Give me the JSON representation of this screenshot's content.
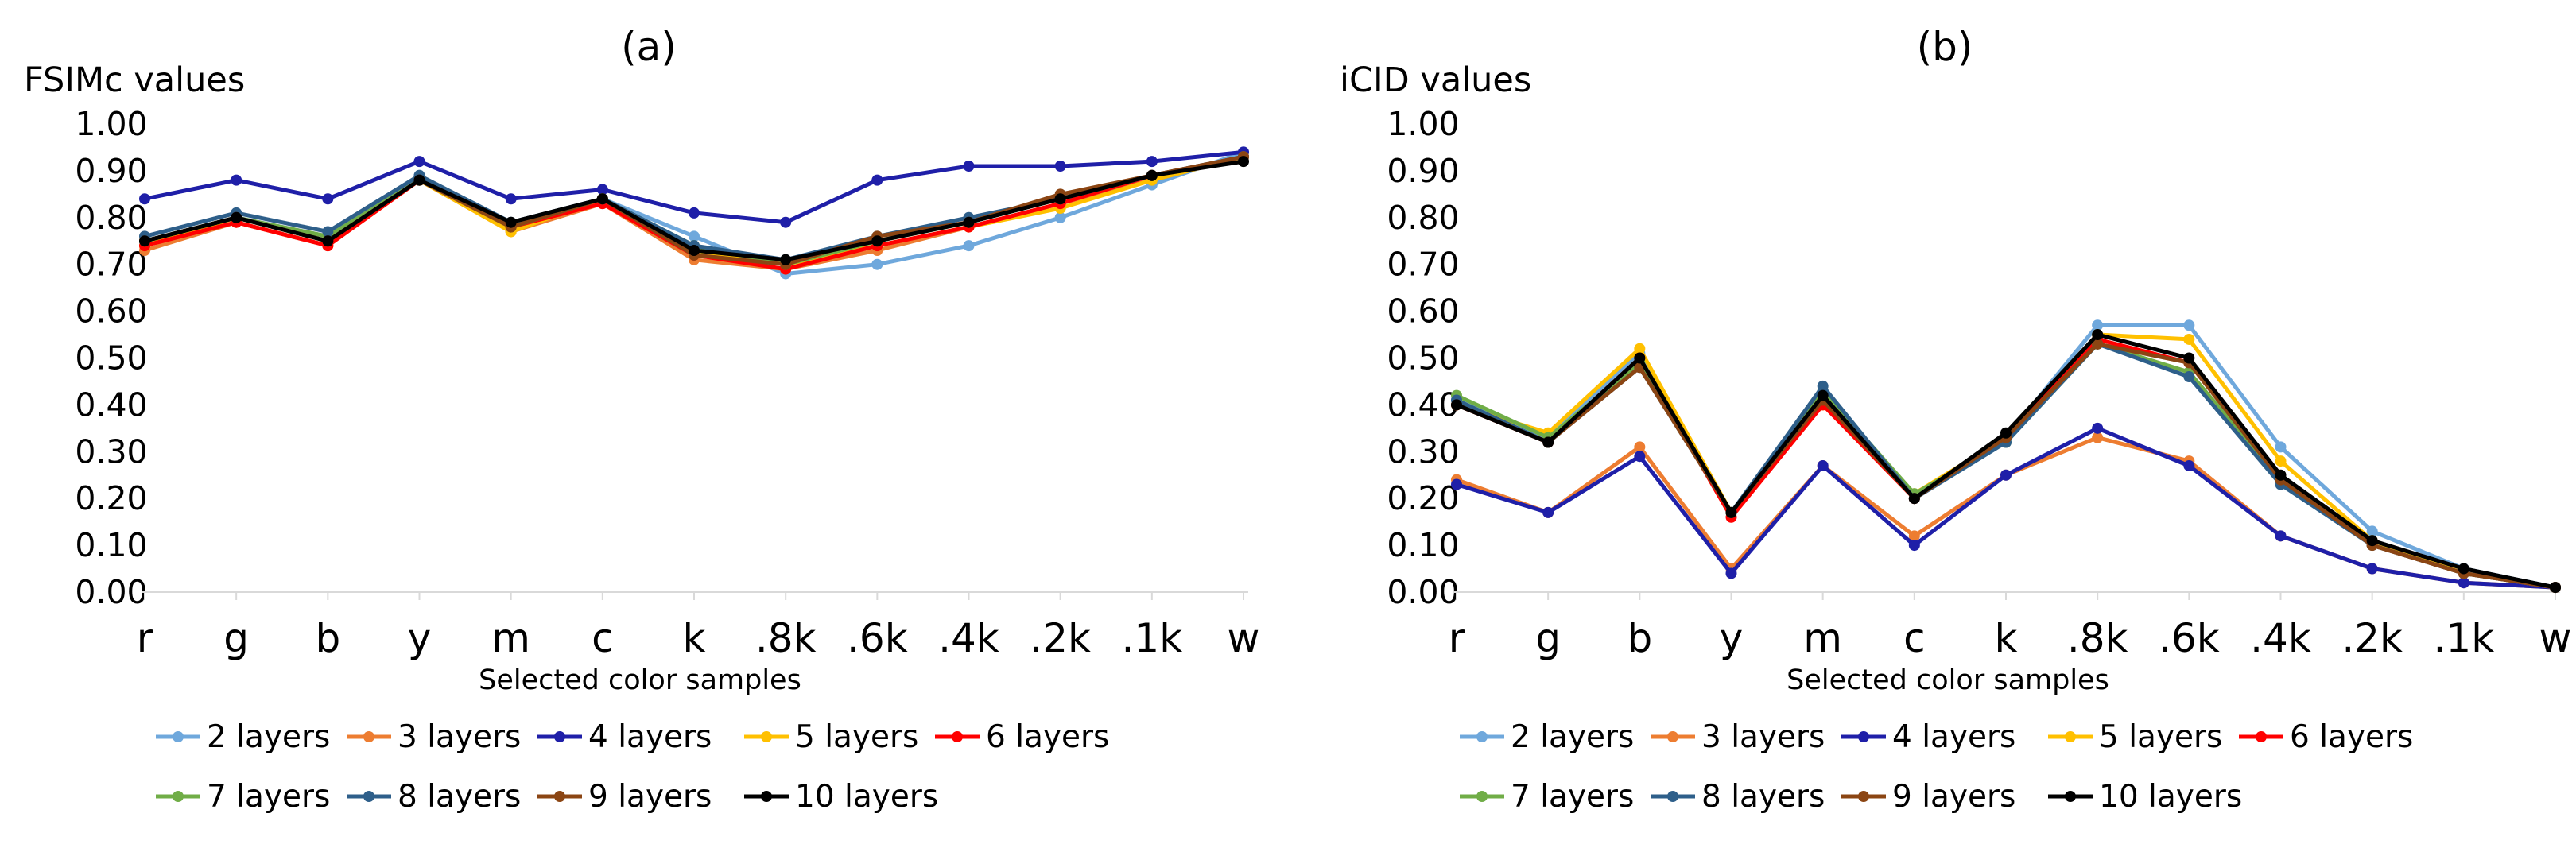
{
  "chart_data": [
    {
      "type": "line",
      "panel_label": "(a)",
      "title": "FSIMc values",
      "xlabel": "Selected color samples",
      "ylabel": "FSIMc values",
      "ylim": [
        0,
        1
      ],
      "yticks": [
        "0.00",
        "0.10",
        "0.20",
        "0.30",
        "0.40",
        "0.50",
        "0.60",
        "0.70",
        "0.80",
        "0.90",
        "1.00"
      ],
      "legend_position": "bottom",
      "categories": [
        "r",
        "g",
        "b",
        "y",
        "m",
        "c",
        "k",
        ".8k",
        ".6k",
        ".4k",
        ".2k",
        ".1k",
        "w"
      ],
      "series": [
        {
          "name": "2 layers",
          "color": "#6fa8dc",
          "values": [
            0.75,
            0.8,
            0.76,
            0.89,
            0.78,
            0.84,
            0.76,
            0.68,
            0.7,
            0.74,
            0.8,
            0.87,
            0.94
          ]
        },
        {
          "name": "3 layers",
          "color": "#ed7d31",
          "values": [
            0.73,
            0.79,
            0.74,
            0.88,
            0.77,
            0.83,
            0.71,
            0.69,
            0.73,
            0.78,
            0.83,
            0.88,
            0.93
          ]
        },
        {
          "name": "4 layers",
          "color": "#1f1fa8",
          "values": [
            0.84,
            0.88,
            0.84,
            0.92,
            0.84,
            0.86,
            0.81,
            0.79,
            0.88,
            0.91,
            0.91,
            0.92,
            0.94
          ]
        },
        {
          "name": "5 layers",
          "color": "#ffc000",
          "values": [
            0.74,
            0.8,
            0.75,
            0.88,
            0.77,
            0.84,
            0.73,
            0.7,
            0.74,
            0.78,
            0.82,
            0.88,
            0.93
          ]
        },
        {
          "name": "6 layers",
          "color": "#ff0000",
          "values": [
            0.74,
            0.79,
            0.74,
            0.88,
            0.78,
            0.83,
            0.72,
            0.69,
            0.74,
            0.78,
            0.83,
            0.89,
            0.93
          ]
        },
        {
          "name": "7 layers",
          "color": "#70ad47",
          "values": [
            0.75,
            0.8,
            0.76,
            0.88,
            0.78,
            0.84,
            0.74,
            0.7,
            0.75,
            0.79,
            0.84,
            0.89,
            0.93
          ]
        },
        {
          "name": "8 layers",
          "color": "#2e5f8a",
          "values": [
            0.76,
            0.81,
            0.77,
            0.89,
            0.79,
            0.84,
            0.74,
            0.71,
            0.76,
            0.8,
            0.84,
            0.89,
            0.93
          ]
        },
        {
          "name": "9 layers",
          "color": "#8b4513",
          "values": [
            0.75,
            0.8,
            0.75,
            0.88,
            0.78,
            0.84,
            0.72,
            0.7,
            0.76,
            0.79,
            0.85,
            0.89,
            0.93
          ]
        },
        {
          "name": "10 layers",
          "color": "#000000",
          "values": [
            0.75,
            0.8,
            0.75,
            0.88,
            0.79,
            0.84,
            0.73,
            0.71,
            0.75,
            0.79,
            0.84,
            0.89,
            0.92
          ]
        }
      ]
    },
    {
      "type": "line",
      "panel_label": "(b)",
      "title": "iCID values",
      "xlabel": "Selected color samples",
      "ylabel": "iCID values",
      "ylim": [
        0,
        1
      ],
      "yticks": [
        "0.00",
        "0.10",
        "0.20",
        "0.30",
        "0.40",
        "0.50",
        "0.60",
        "0.70",
        "0.80",
        "0.90",
        "1.00"
      ],
      "legend_position": "bottom",
      "categories": [
        "r",
        "g",
        "b",
        "y",
        "m",
        "c",
        "k",
        ".8k",
        ".6k",
        ".4k",
        ".2k",
        ".1k",
        "w"
      ],
      "series": [
        {
          "name": "2 layers",
          "color": "#6fa8dc",
          "values": [
            0.41,
            0.33,
            0.51,
            0.17,
            0.42,
            0.2,
            0.33,
            0.57,
            0.57,
            0.31,
            0.13,
            0.05,
            0.01
          ]
        },
        {
          "name": "3 layers",
          "color": "#ed7d31",
          "values": [
            0.24,
            0.17,
            0.31,
            0.05,
            0.27,
            0.12,
            0.25,
            0.33,
            0.28,
            0.12,
            0.05,
            0.02,
            0.01
          ]
        },
        {
          "name": "4 layers",
          "color": "#1f1fa8",
          "values": [
            0.23,
            0.17,
            0.29,
            0.04,
            0.27,
            0.1,
            0.25,
            0.35,
            0.27,
            0.12,
            0.05,
            0.02,
            0.01
          ]
        },
        {
          "name": "5 layers",
          "color": "#ffc000",
          "values": [
            0.4,
            0.34,
            0.52,
            0.17,
            0.4,
            0.21,
            0.33,
            0.55,
            0.54,
            0.28,
            0.11,
            0.04,
            0.01
          ]
        },
        {
          "name": "6 layers",
          "color": "#ff0000",
          "values": [
            0.4,
            0.32,
            0.5,
            0.16,
            0.4,
            0.2,
            0.33,
            0.54,
            0.49,
            0.24,
            0.1,
            0.04,
            0.01
          ]
        },
        {
          "name": "7 layers",
          "color": "#70ad47",
          "values": [
            0.42,
            0.33,
            0.49,
            0.17,
            0.43,
            0.21,
            0.32,
            0.53,
            0.47,
            0.24,
            0.1,
            0.04,
            0.01
          ]
        },
        {
          "name": "8 layers",
          "color": "#2e5f8a",
          "values": [
            0.41,
            0.32,
            0.48,
            0.17,
            0.44,
            0.2,
            0.32,
            0.53,
            0.46,
            0.23,
            0.1,
            0.04,
            0.01
          ]
        },
        {
          "name": "9 layers",
          "color": "#8b4513",
          "values": [
            0.4,
            0.32,
            0.48,
            0.17,
            0.41,
            0.2,
            0.33,
            0.53,
            0.49,
            0.24,
            0.1,
            0.04,
            0.01
          ]
        },
        {
          "name": "10 layers",
          "color": "#000000",
          "values": [
            0.4,
            0.32,
            0.5,
            0.17,
            0.42,
            0.2,
            0.34,
            0.55,
            0.5,
            0.25,
            0.11,
            0.05,
            0.01
          ]
        }
      ]
    }
  ]
}
